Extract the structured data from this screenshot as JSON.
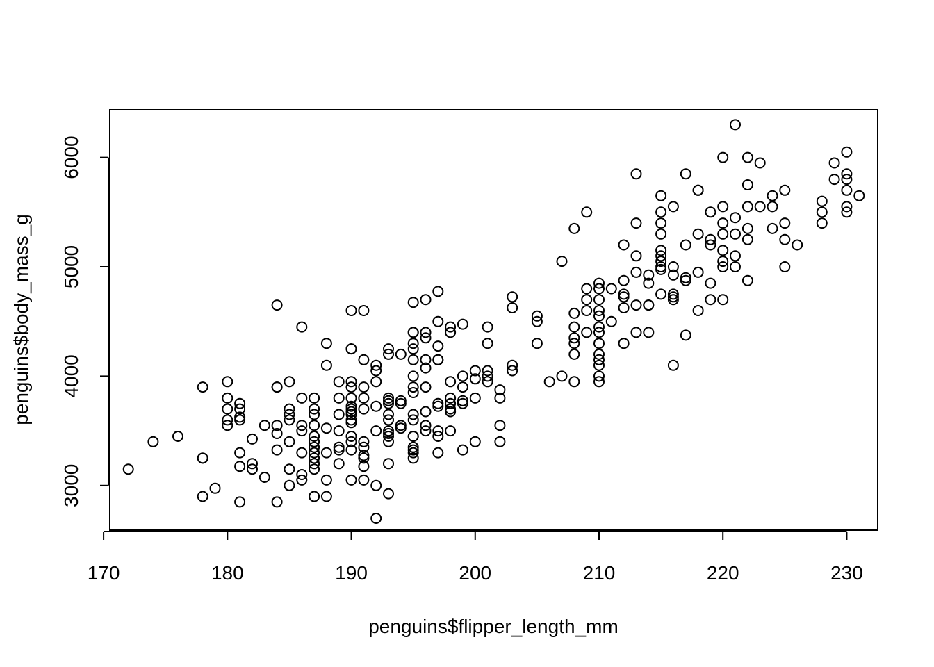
{
  "chart_data": {
    "type": "scatter",
    "title": "",
    "xlabel": "penguins$flipper_length_mm",
    "ylabel": "penguins$body_mass_g",
    "xlim": [
      170.5,
      232.5
    ],
    "ylim": [
      2592,
      6436
    ],
    "xticks": [
      170,
      180,
      190,
      200,
      210,
      220,
      230
    ],
    "yticks": [
      3000,
      4000,
      5000,
      6000
    ],
    "xtick_labels": [
      "170",
      "180",
      "190",
      "200",
      "210",
      "220",
      "230"
    ],
    "ytick_labels": [
      "3000",
      "4000",
      "5000",
      "6000"
    ],
    "grid": false,
    "legend": "none",
    "marker": "open-circle",
    "points": [
      [
        172,
        3150
      ],
      [
        174,
        3400
      ],
      [
        176,
        3450
      ],
      [
        178,
        3900
      ],
      [
        178,
        3250
      ],
      [
        178,
        3250
      ],
      [
        178,
        2900
      ],
      [
        179,
        2975
      ],
      [
        180,
        3950
      ],
      [
        180,
        3800
      ],
      [
        180,
        3700
      ],
      [
        180,
        3600
      ],
      [
        180,
        3550
      ],
      [
        181,
        3750
      ],
      [
        181,
        3700
      ],
      [
        181,
        3625
      ],
      [
        181,
        3600
      ],
      [
        181,
        3300
      ],
      [
        181,
        3175
      ],
      [
        181,
        2850
      ],
      [
        182,
        3425
      ],
      [
        182,
        3200
      ],
      [
        182,
        3150
      ],
      [
        183,
        3550
      ],
      [
        183,
        3075
      ],
      [
        184,
        4650
      ],
      [
        184,
        3900
      ],
      [
        184,
        3900
      ],
      [
        184,
        3550
      ],
      [
        184,
        3475
      ],
      [
        184,
        3325
      ],
      [
        184,
        2850
      ],
      [
        185,
        3950
      ],
      [
        185,
        3700
      ],
      [
        185,
        3650
      ],
      [
        185,
        3600
      ],
      [
        185,
        3400
      ],
      [
        185,
        3150
      ],
      [
        185,
        3000
      ],
      [
        186,
        4450
      ],
      [
        186,
        3800
      ],
      [
        186,
        3550
      ],
      [
        186,
        3500
      ],
      [
        186,
        3300
      ],
      [
        186,
        3100
      ],
      [
        186,
        3050
      ],
      [
        187,
        3800
      ],
      [
        187,
        3700
      ],
      [
        187,
        3650
      ],
      [
        187,
        3550
      ],
      [
        187,
        3450
      ],
      [
        187,
        3400
      ],
      [
        187,
        3350
      ],
      [
        187,
        3300
      ],
      [
        187,
        3250
      ],
      [
        187,
        3200
      ],
      [
        187,
        3150
      ],
      [
        187,
        2900
      ],
      [
        187,
        2900
      ],
      [
        188,
        4300
      ],
      [
        188,
        4100
      ],
      [
        188,
        3525
      ],
      [
        188,
        3300
      ],
      [
        188,
        3050
      ],
      [
        188,
        2900
      ],
      [
        189,
        3950
      ],
      [
        189,
        3800
      ],
      [
        189,
        3650
      ],
      [
        189,
        3500
      ],
      [
        189,
        3350
      ],
      [
        189,
        3325
      ],
      [
        189,
        3200
      ],
      [
        190,
        4600
      ],
      [
        190,
        4250
      ],
      [
        190,
        4250
      ],
      [
        190,
        3950
      ],
      [
        190,
        3900
      ],
      [
        190,
        3800
      ],
      [
        190,
        3725
      ],
      [
        190,
        3700
      ],
      [
        190,
        3675
      ],
      [
        190,
        3650
      ],
      [
        190,
        3600
      ],
      [
        190,
        3575
      ],
      [
        190,
        3450
      ],
      [
        190,
        3400
      ],
      [
        190,
        3325
      ],
      [
        190,
        3050
      ],
      [
        191,
        4600
      ],
      [
        191,
        4150
      ],
      [
        191,
        3900
      ],
      [
        191,
        3800
      ],
      [
        191,
        3700
      ],
      [
        191,
        3400
      ],
      [
        191,
        3350
      ],
      [
        191,
        3275
      ],
      [
        191,
        3250
      ],
      [
        191,
        3175
      ],
      [
        191,
        3050
      ],
      [
        192,
        4100
      ],
      [
        192,
        4050
      ],
      [
        192,
        3950
      ],
      [
        192,
        3725
      ],
      [
        192,
        3500
      ],
      [
        192,
        3000
      ],
      [
        192,
        2700
      ],
      [
        193,
        4250
      ],
      [
        193,
        4200
      ],
      [
        193,
        3800
      ],
      [
        193,
        3775
      ],
      [
        193,
        3750
      ],
      [
        193,
        3650
      ],
      [
        193,
        3600
      ],
      [
        193,
        3500
      ],
      [
        193,
        3475
      ],
      [
        193,
        3450
      ],
      [
        193,
        3400
      ],
      [
        193,
        3200
      ],
      [
        193,
        2925
      ],
      [
        194,
        4200
      ],
      [
        194,
        3775
      ],
      [
        194,
        3750
      ],
      [
        194,
        3550
      ],
      [
        194,
        3525
      ],
      [
        195,
        4675
      ],
      [
        195,
        4400
      ],
      [
        195,
        4400
      ],
      [
        195,
        4300
      ],
      [
        195,
        4250
      ],
      [
        195,
        4150
      ],
      [
        195,
        4000
      ],
      [
        195,
        3900
      ],
      [
        195,
        3850
      ],
      [
        195,
        3650
      ],
      [
        195,
        3600
      ],
      [
        195,
        3450
      ],
      [
        195,
        3450
      ],
      [
        195,
        3350
      ],
      [
        195,
        3325
      ],
      [
        195,
        3300
      ],
      [
        195,
        3250
      ],
      [
        196,
        4700
      ],
      [
        196,
        4400
      ],
      [
        196,
        4350
      ],
      [
        196,
        4150
      ],
      [
        196,
        4075
      ],
      [
        196,
        3900
      ],
      [
        196,
        3675
      ],
      [
        196,
        3550
      ],
      [
        196,
        3500
      ],
      [
        197,
        4775
      ],
      [
        197,
        4500
      ],
      [
        197,
        4275
      ],
      [
        197,
        4150
      ],
      [
        197,
        4150
      ],
      [
        197,
        3750
      ],
      [
        197,
        3725
      ],
      [
        197,
        3500
      ],
      [
        197,
        3450
      ],
      [
        197,
        3300
      ],
      [
        198,
        4450
      ],
      [
        198,
        4400
      ],
      [
        198,
        3950
      ],
      [
        198,
        3800
      ],
      [
        198,
        3750
      ],
      [
        198,
        3700
      ],
      [
        198,
        3675
      ],
      [
        198,
        3500
      ],
      [
        199,
        4475
      ],
      [
        199,
        4000
      ],
      [
        199,
        3900
      ],
      [
        199,
        3775
      ],
      [
        199,
        3750
      ],
      [
        199,
        3325
      ],
      [
        200,
        4050
      ],
      [
        200,
        3975
      ],
      [
        200,
        3800
      ],
      [
        200,
        3400
      ],
      [
        201,
        4450
      ],
      [
        201,
        4300
      ],
      [
        201,
        4050
      ],
      [
        201,
        4000
      ],
      [
        201,
        3950
      ],
      [
        202,
        3875
      ],
      [
        202,
        3800
      ],
      [
        202,
        3550
      ],
      [
        202,
        3400
      ],
      [
        203,
        4725
      ],
      [
        203,
        4625
      ],
      [
        203,
        4100
      ],
      [
        203,
        4050
      ],
      [
        205,
        4550
      ],
      [
        205,
        4500
      ],
      [
        205,
        4300
      ],
      [
        206,
        3950
      ],
      [
        207,
        5050
      ],
      [
        207,
        4000
      ],
      [
        208,
        5350
      ],
      [
        208,
        4575
      ],
      [
        208,
        4450
      ],
      [
        208,
        4350
      ],
      [
        208,
        4300
      ],
      [
        208,
        4200
      ],
      [
        208,
        3950
      ],
      [
        209,
        5500
      ],
      [
        209,
        4800
      ],
      [
        209,
        4700
      ],
      [
        209,
        4600
      ],
      [
        209,
        4400
      ],
      [
        210,
        4850
      ],
      [
        210,
        4800
      ],
      [
        210,
        4700
      ],
      [
        210,
        4600
      ],
      [
        210,
        4550
      ],
      [
        210,
        4450
      ],
      [
        210,
        4400
      ],
      [
        210,
        4300
      ],
      [
        210,
        4200
      ],
      [
        210,
        4150
      ],
      [
        210,
        4100
      ],
      [
        210,
        4000
      ],
      [
        210,
        3950
      ],
      [
        211,
        4800
      ],
      [
        211,
        4500
      ],
      [
        212,
        5200
      ],
      [
        212,
        4875
      ],
      [
        212,
        4750
      ],
      [
        212,
        4725
      ],
      [
        212,
        4625
      ],
      [
        212,
        4300
      ],
      [
        213,
        5850
      ],
      [
        213,
        5400
      ],
      [
        213,
        5100
      ],
      [
        213,
        4950
      ],
      [
        213,
        4650
      ],
      [
        213,
        4400
      ],
      [
        214,
        4925
      ],
      [
        214,
        4850
      ],
      [
        214,
        4650
      ],
      [
        214,
        4650
      ],
      [
        214,
        4400
      ],
      [
        215,
        5650
      ],
      [
        215,
        5500
      ],
      [
        215,
        5400
      ],
      [
        215,
        5300
      ],
      [
        215,
        5150
      ],
      [
        215,
        5100
      ],
      [
        215,
        5050
      ],
      [
        215,
        5000
      ],
      [
        215,
        4975
      ],
      [
        215,
        4750
      ],
      [
        216,
        5550
      ],
      [
        216,
        5000
      ],
      [
        216,
        4925
      ],
      [
        216,
        4750
      ],
      [
        216,
        4725
      ],
      [
        216,
        4700
      ],
      [
        216,
        4100
      ],
      [
        217,
        5850
      ],
      [
        217,
        5200
      ],
      [
        217,
        4900
      ],
      [
        217,
        4875
      ],
      [
        217,
        4375
      ],
      [
        218,
        5700
      ],
      [
        218,
        5700
      ],
      [
        218,
        5300
      ],
      [
        218,
        4950
      ],
      [
        218,
        4600
      ],
      [
        219,
        5500
      ],
      [
        219,
        5250
      ],
      [
        219,
        5200
      ],
      [
        219,
        4850
      ],
      [
        219,
        4700
      ],
      [
        220,
        6000
      ],
      [
        220,
        5550
      ],
      [
        220,
        5400
      ],
      [
        220,
        5300
      ],
      [
        220,
        5150
      ],
      [
        220,
        5050
      ],
      [
        220,
        5000
      ],
      [
        220,
        4700
      ],
      [
        221,
        6300
      ],
      [
        221,
        5450
      ],
      [
        221,
        5300
      ],
      [
        221,
        5100
      ],
      [
        221,
        5000
      ],
      [
        222,
        6000
      ],
      [
        222,
        5750
      ],
      [
        222,
        5550
      ],
      [
        222,
        5350
      ],
      [
        222,
        5250
      ],
      [
        222,
        4875
      ],
      [
        223,
        5950
      ],
      [
        223,
        5550
      ],
      [
        224,
        5650
      ],
      [
        224,
        5550
      ],
      [
        224,
        5350
      ],
      [
        225,
        5700
      ],
      [
        225,
        5400
      ],
      [
        225,
        5250
      ],
      [
        225,
        5000
      ],
      [
        226,
        5200
      ],
      [
        228,
        5600
      ],
      [
        228,
        5500
      ],
      [
        228,
        5400
      ],
      [
        229,
        5950
      ],
      [
        229,
        5800
      ],
      [
        230,
        6050
      ],
      [
        230,
        5850
      ],
      [
        230,
        5800
      ],
      [
        230,
        5700
      ],
      [
        230,
        5550
      ],
      [
        230,
        5500
      ],
      [
        231,
        5650
      ]
    ]
  }
}
